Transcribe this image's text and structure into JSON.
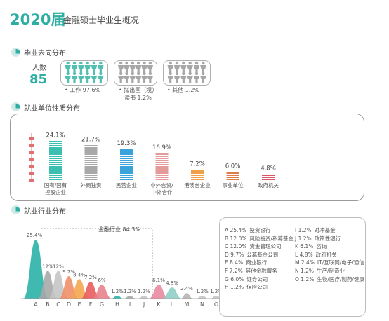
{
  "header": {
    "year": "2020届",
    "rest": "金融硕士毕业生概况"
  },
  "sections": {
    "destination": "毕业去向分布",
    "employer_type": "就业单位性质分布",
    "industry": "就业行业分布"
  },
  "destination": {
    "people_label": "人数",
    "people_count": "85",
    "groups": [
      {
        "caption_line1": "• 工作 97.6%",
        "caption_line2": "",
        "color": "#52bfb1"
      },
      {
        "caption_line1": "• 拟出国（境）",
        "caption_line2": "读书 1.2%",
        "color": "#a7a7a7"
      },
      {
        "caption_line1": "• 其他 1.2%",
        "caption_line2": "",
        "color": "#a7a7a7"
      }
    ]
  },
  "chart_data": [
    {
      "type": "bar",
      "categories": [
        "国有/国有控股企业",
        "外商独资",
        "民营企业",
        "中外合资/中外合作",
        "港澳台企业",
        "事业单位",
        "政府机关"
      ],
      "category_lines": [
        [
          "国有/国有",
          "控股企业"
        ],
        [
          "外商独资"
        ],
        [
          "民营企业"
        ],
        [
          "中外合资/",
          "中外合作"
        ],
        [
          "港澳台企业"
        ],
        [
          "事业单位"
        ],
        [
          "政府机关"
        ]
      ],
      "values": [
        24.1,
        21.7,
        19.3,
        16.9,
        7.2,
        6.0,
        4.8
      ],
      "value_labels": [
        "24.1%",
        "21.7%",
        "19.3%",
        "16.9%",
        "7.2%",
        "6.0%",
        "4.8%"
      ],
      "colors": [
        "#3bbfb0",
        "#a8a8a8",
        "#3aa3d9",
        "#e39a98",
        "#f0a048",
        "#e27b4a",
        "#d95565"
      ],
      "ylim": [
        0,
        28
      ]
    },
    {
      "type": "area",
      "categories": [
        "A",
        "B",
        "C",
        "D",
        "E",
        "F",
        "G",
        "H",
        "I",
        "J",
        "K",
        "L",
        "M",
        "N",
        "O"
      ],
      "values": [
        25.4,
        12.0,
        12.0,
        9.7,
        8.4,
        7.2,
        6.0,
        1.2,
        1.2,
        1.2,
        6.1,
        4.8,
        2.4,
        1.2,
        1.2
      ],
      "value_labels": [
        "25.4%",
        "12%",
        "12%",
        "9.7%",
        "8.4%",
        "7.2%",
        "6%",
        "1.2%",
        "1.2%",
        "1.2%",
        "6.1%",
        "4.8%",
        "2.4%",
        "1.2%",
        "1.2%"
      ],
      "colors": [
        "#2bb3a7",
        "#a9a9a9",
        "#c5c5c5",
        "#ef8f68",
        "#f4a64f",
        "#e85c5c",
        "#e9828b",
        "#2bb3a7",
        "#a9a9a9",
        "#c5c5c5",
        "#e88aa0",
        "#8fcfc6",
        "#b5b5b5",
        "#c5c5c5",
        "#c5c5c5"
      ],
      "annotation": "金融行业 84.3%",
      "legend": [
        {
          "code": "A",
          "pct": "25.4%",
          "name": "投资银行"
        },
        {
          "code": "B",
          "pct": "12.0%",
          "name": "风险投资/私募基金"
        },
        {
          "code": "C",
          "pct": "12.0%",
          "name": "资金管理公司"
        },
        {
          "code": "D",
          "pct": "9.7%",
          "name": "公募基金公司"
        },
        {
          "code": "E",
          "pct": "8.4%",
          "name": "商业银行"
        },
        {
          "code": "F",
          "pct": "7.2%",
          "name": "其他金融服务"
        },
        {
          "code": "G",
          "pct": "6.0%",
          "name": "证券公司"
        },
        {
          "code": "H",
          "pct": "1.2%",
          "name": "保险公司"
        },
        {
          "code": "I",
          "pct": "1.2%",
          "name": "对冲基金"
        },
        {
          "code": "J",
          "pct": "1.2%",
          "name": "政策性银行"
        },
        {
          "code": "K",
          "pct": "6.1%",
          "name": "咨询"
        },
        {
          "code": "L",
          "pct": "4.8%",
          "name": "政府机关"
        },
        {
          "code": "M",
          "pct": "2.4%",
          "name": "IT/互联网/电子/通信"
        },
        {
          "code": "N",
          "pct": "1.2%",
          "name": "生产/制造业"
        },
        {
          "code": "O",
          "pct": "1.2%",
          "name": "生物/医疗/制药/健康"
        }
      ]
    }
  ]
}
